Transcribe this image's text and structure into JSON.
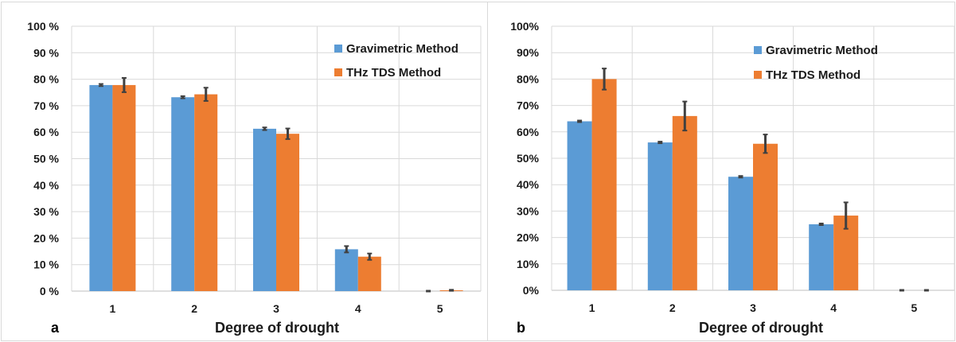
{
  "colors": {
    "gravimetric": "#5b9bd5",
    "thz": "#ed7d31",
    "grid": "#d9d9d9",
    "errorbar": "#404040"
  },
  "chart_data": [
    {
      "type": "bar",
      "panel_label": "a",
      "xlabel": "Degree of drought",
      "ylabel": "",
      "categories": [
        "1",
        "2",
        "3",
        "4",
        "5"
      ],
      "yticks": [
        "0 %",
        "10 %",
        "20 %",
        "30 %",
        "40 %",
        "50 %",
        "60 %",
        "70 %",
        "80 %",
        "90 %",
        "100 %"
      ],
      "ylim": [
        0,
        100
      ],
      "grid": true,
      "legend_position": "top-right",
      "series": [
        {
          "name": "Gravimetric Method",
          "values": [
            77.8,
            73.2,
            61.3,
            15.8,
            0
          ],
          "errors": [
            0.4,
            0.4,
            0.5,
            1.2,
            0
          ]
        },
        {
          "name": "THz TDS Method",
          "values": [
            77.8,
            74.3,
            59.4,
            13.0,
            0.3
          ],
          "errors": [
            2.7,
            2.5,
            2.0,
            1.2,
            0.2
          ]
        }
      ]
    },
    {
      "type": "bar",
      "panel_label": "b",
      "xlabel": "Degree of drought",
      "ylabel": "",
      "categories": [
        "1",
        "2",
        "3",
        "4",
        "5"
      ],
      "yticks": [
        "0%",
        "10%",
        "20%",
        "30%",
        "40%",
        "50%",
        "60%",
        "70%",
        "80%",
        "90%",
        "100%"
      ],
      "ylim": [
        0,
        100
      ],
      "grid": true,
      "legend_position": "top-right",
      "series": [
        {
          "name": "Gravimetric Method",
          "values": [
            64.0,
            56.0,
            43.0,
            25.0,
            0
          ],
          "errors": [
            0.3,
            0.3,
            0.3,
            0.3,
            0
          ]
        },
        {
          "name": "THz TDS Method",
          "values": [
            80.0,
            66.0,
            55.5,
            28.3,
            0
          ],
          "errors": [
            4.0,
            5.5,
            3.5,
            5.0,
            0
          ]
        }
      ]
    }
  ]
}
